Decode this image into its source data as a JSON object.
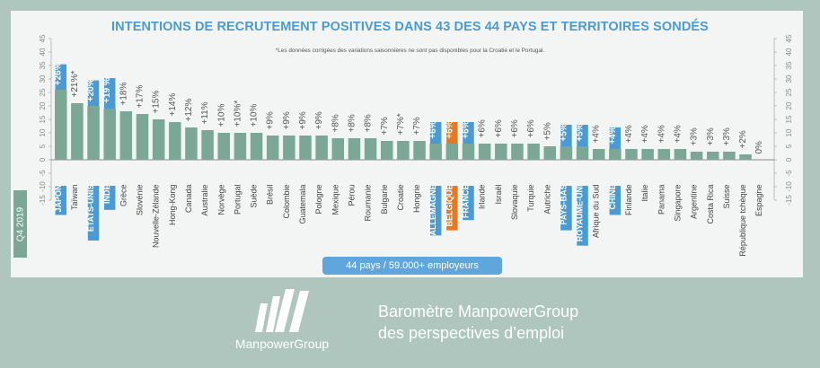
{
  "title": "INTENTIONS DE RECRUTEMENT POSITIVES DANS 43 DES 44 PAYS ET TERRITOIRES SONDÉS",
  "subtitle": "*Les données corrigées des variations saisonnières ne sont pas disponibles pour la Croatie et le Portugal.",
  "quarter_label": "Q4 2019",
  "footer_pill": "44 pays / 59.000+ employeurs",
  "brand": "ManpowerGroup",
  "barometer_line1": "Baromètre ManpowerGroup",
  "barometer_line2": "des perspectives d’emploi",
  "colors": {
    "background": "#aec6bd",
    "card": "#f2f5f3",
    "bar": "#7aa796",
    "highlight_blue": "#4a9bd5",
    "highlight_orange": "#e8771f"
  },
  "chart_data": {
    "type": "bar",
    "ylim": [
      -15,
      45
    ],
    "yticks": [
      -15,
      -10,
      -5,
      0,
      5,
      10,
      15,
      20,
      25,
      30,
      35,
      40,
      45
    ],
    "grid": false,
    "categories": [
      "JAPON",
      "Taïwan",
      "ÉTATS-UNIS",
      "INDE",
      "Grèce",
      "Slovénie",
      "Nouvelle-Zélande",
      "Hong-Kong",
      "Canada",
      "Australie",
      "Norvège",
      "Portugal",
      "Suède",
      "Brésil",
      "Colombie",
      "Guatemala",
      "Pologne",
      "Mexique",
      "Pérou",
      "Roumanie",
      "Bulgarie",
      "Croatie",
      "Hongrie",
      "ALLEMAGNE",
      "BELGIQUE",
      "FRANCE",
      "Irlande",
      "Israël",
      "Slovaquie",
      "Turquie",
      "Autriche",
      "PAYS-BAS",
      "ROYAUME-UNI",
      "Afrique du Sud",
      "CHINE",
      "Finlande",
      "Italie",
      "Panama",
      "Singapore",
      "Argentine",
      "Costa Rica",
      "Suisse",
      "République tchèque",
      "Espagne"
    ],
    "values": [
      26,
      21,
      20,
      19,
      18,
      17,
      15,
      14,
      12,
      11,
      10,
      10,
      10,
      9,
      9,
      9,
      9,
      8,
      8,
      8,
      7,
      7,
      7,
      6,
      6,
      6,
      6,
      6,
      6,
      6,
      5,
      5,
      5,
      4,
      4,
      4,
      4,
      4,
      4,
      3,
      3,
      3,
      2,
      0
    ],
    "value_labels": [
      "+26%",
      "+21%*",
      "+20%",
      "+19 %",
      "+18%",
      "+17%",
      "+15%",
      "+14%",
      "+12%",
      "+11%",
      "+10%",
      "+10%*",
      "+10%",
      "+9%",
      "+9%",
      "+9%",
      "+9%",
      "+8%",
      "+8%",
      "+8%",
      "+7%",
      "+7%*",
      "+7%",
      "+6%",
      "+6%",
      "+6%",
      "+6%",
      "+6%",
      "+6%",
      "+6%",
      "+5%",
      "+5%",
      "+5%",
      "+4%",
      "+4%",
      "+4%",
      "+4%",
      "+4%",
      "+4%",
      "+3%",
      "+3%",
      "+3%",
      "+2%",
      "0%"
    ],
    "highlight": [
      "blue",
      "",
      "blue",
      "blue",
      "",
      "",
      "",
      "",
      "",
      "",
      "",
      "",
      "",
      "",
      "",
      "",
      "",
      "",
      "",
      "",
      "",
      "",
      "",
      "blue",
      "orange",
      "blue",
      "",
      "",
      "",
      "",
      "",
      "blue",
      "blue",
      "",
      "blue",
      "",
      "",
      "",
      "",
      "",
      "",
      "",
      "",
      ""
    ]
  }
}
